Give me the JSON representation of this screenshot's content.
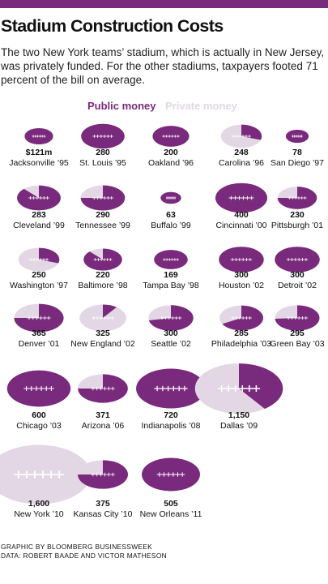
{
  "header": {
    "title": "Stadium Construction Costs",
    "subtitle": "The two New York teams’ stadium, which is actually in New Jersey, was privately funded. For the other stadiums, taxpayers footed 71 percent of the bill on average."
  },
  "legend": {
    "public_label": "Public money",
    "private_label": "Private money"
  },
  "colors": {
    "accent_bar": "#7a2a7c",
    "public": "#7a2a7c",
    "private": "#e3d7e5",
    "laces": "#ffffff"
  },
  "chart_data": {
    "type": "proportional-symbol",
    "value_unit": "$ millions",
    "legend_placement": "top",
    "series": [
      {
        "name": "Public money"
      },
      {
        "name": "Private money"
      }
    ],
    "stadiums": [
      {
        "value_label": "$121m",
        "value": 121,
        "label": "Jacksonville ’95",
        "public_share": 1.0
      },
      {
        "value_label": "280",
        "value": 280,
        "label": "St. Louis ’95",
        "public_share": 1.0
      },
      {
        "value_label": "200",
        "value": 200,
        "label": "Oakland ’96",
        "public_share": 1.0
      },
      {
        "value_label": "248",
        "value": 248,
        "label": "Carolina ’96",
        "public_share": 0.3
      },
      {
        "value_label": "78",
        "value": 78,
        "label": "San Diego ’97",
        "public_share": 1.0
      },
      {
        "value_label": "283",
        "value": 283,
        "label": "Cleveland ’99",
        "public_share": 0.88
      },
      {
        "value_label": "290",
        "value": 290,
        "label": "Tennessee ’99",
        "public_share": 0.75
      },
      {
        "value_label": "63",
        "value": 63,
        "label": "Buffalo ’99",
        "public_share": 1.0
      },
      {
        "value_label": "400",
        "value": 400,
        "label": "Cincinnati ’00",
        "public_share": 1.0
      },
      {
        "value_label": "230",
        "value": 230,
        "label": "Pittsburgh ’01",
        "public_share": 0.75
      },
      {
        "value_label": "250",
        "value": 250,
        "label": "Washington ’97",
        "public_share": 0.3
      },
      {
        "value_label": "220",
        "value": 220,
        "label": "Baltimore ’98",
        "public_share": 0.88
      },
      {
        "value_label": "169",
        "value": 169,
        "label": "Tampa Bay ’98",
        "public_share": 1.0
      },
      {
        "value_label": "300",
        "value": 300,
        "label": "Houston ’02",
        "public_share": 1.0
      },
      {
        "value_label": "300",
        "value": 300,
        "label": "Detroit ’02",
        "public_share": 1.0
      },
      {
        "value_label": "365",
        "value": 365,
        "label": "Denver ’01",
        "public_share": 0.75
      },
      {
        "value_label": "325",
        "value": 325,
        "label": "New England ’02",
        "public_share": 0.1
      },
      {
        "value_label": "300",
        "value": 300,
        "label": "Seattle ’02",
        "public_share": 0.72
      },
      {
        "value_label": "285",
        "value": 285,
        "label": "Philadelphia ’03",
        "public_share": 0.67
      },
      {
        "value_label": "295",
        "value": 295,
        "label": "Green Bay ’03",
        "public_share": 0.74
      },
      {
        "value_label": "600",
        "value": 600,
        "label": "Chicago ’03",
        "public_share": 1.0
      },
      {
        "value_label": "371",
        "value": 371,
        "label": "Arizona ’06",
        "public_share": 0.75
      },
      {
        "value_label": "720",
        "value": 720,
        "label": "Indianapolis ’08",
        "public_share": 1.0
      },
      {
        "value_label": "1,150",
        "value": 1150,
        "label": "Dallas ’09",
        "public_share": 0.4
      },
      {
        "value_label": "1,600",
        "value": 1600,
        "label": "New York ’10",
        "public_share": 0.0
      },
      {
        "value_label": "375",
        "value": 375,
        "label": "Kansas City ’10",
        "public_share": 0.75
      },
      {
        "value_label": "505",
        "value": 505,
        "label": "New Orleans ’11",
        "public_share": 1.0
      }
    ]
  },
  "footer": {
    "graphic_credit": "GRAPHIC BY BLOOMBERG BUSINESSWEEK",
    "data_credit": "DATA: ROBERT BAADE AND VICTOR MATHESON"
  }
}
